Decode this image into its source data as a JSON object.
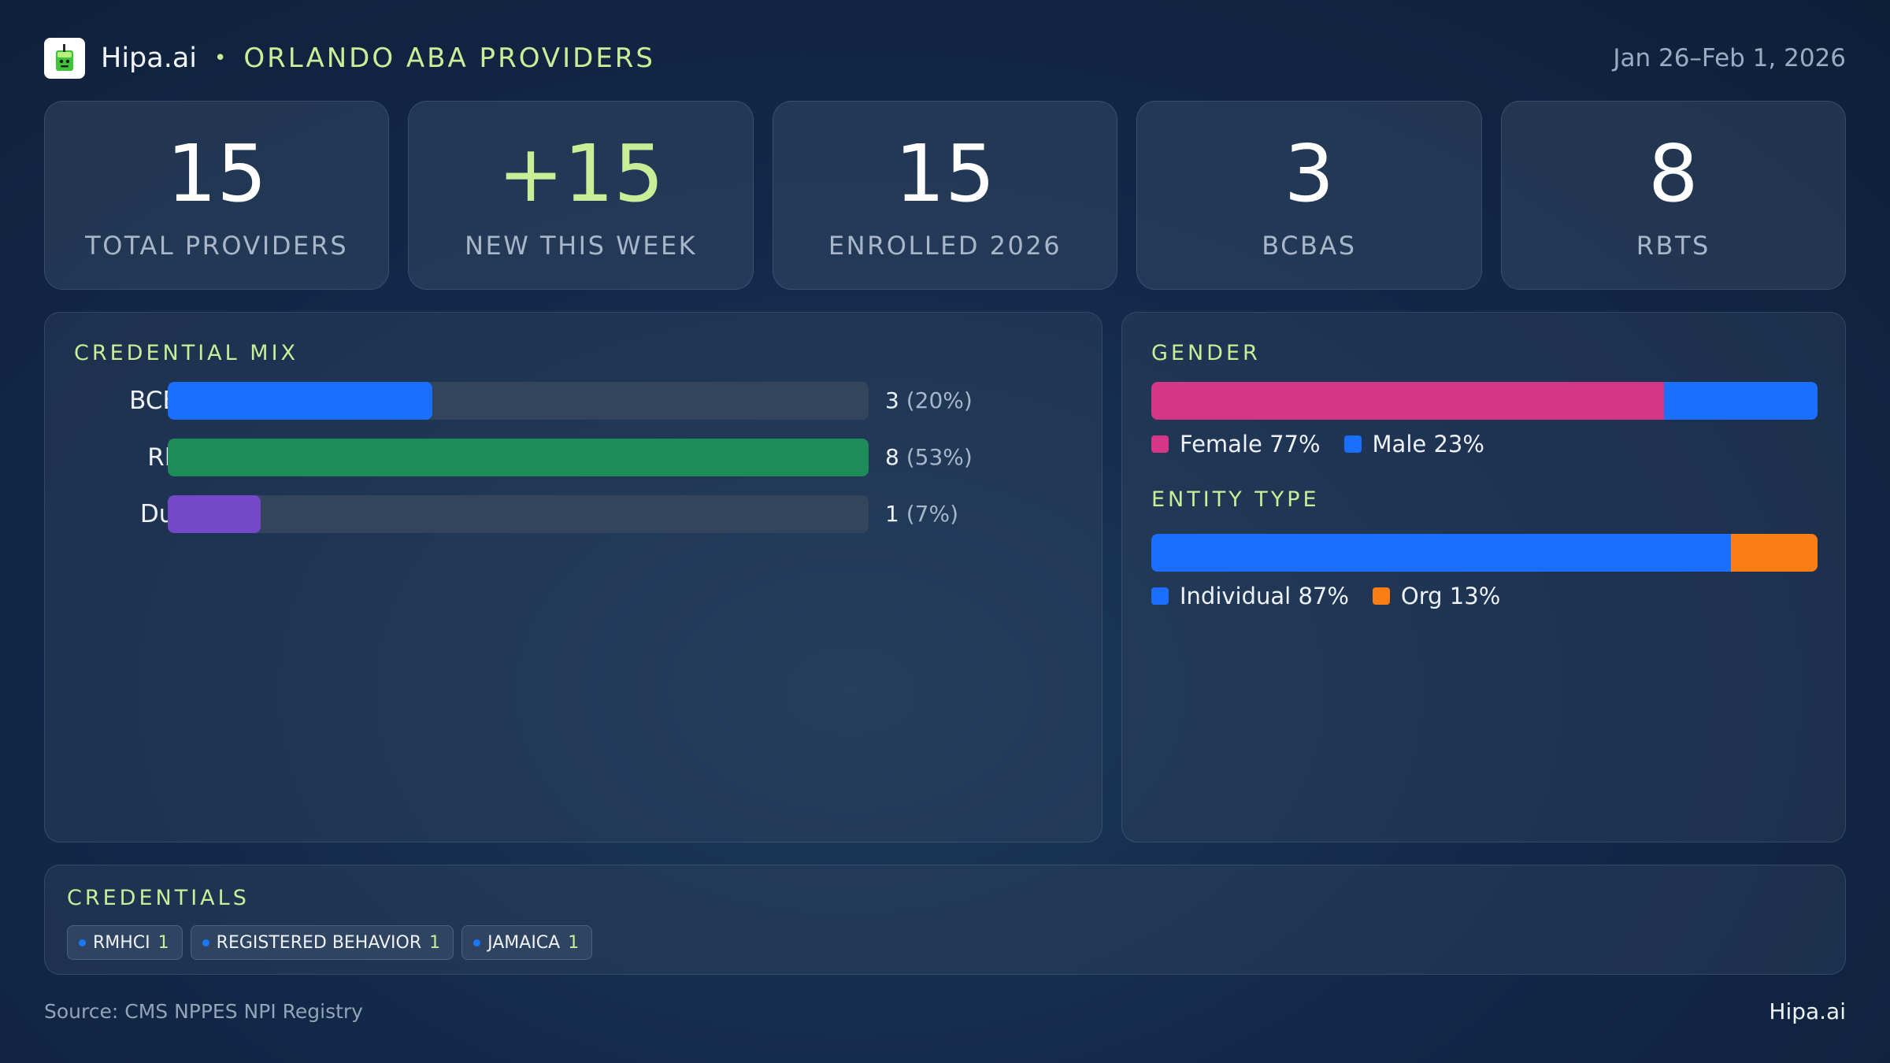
{
  "header": {
    "brand": "Hipa.ai",
    "separator": "•",
    "title": "ORLANDO ABA PROVIDERS",
    "date_range": "Jan 26–Feb 1, 2026"
  },
  "kpis": [
    {
      "value": "15",
      "label": "TOTAL PROVIDERS"
    },
    {
      "value": "+15",
      "label": "NEW THIS WEEK"
    },
    {
      "value": "15",
      "label": "ENROLLED 2026"
    },
    {
      "value": "3",
      "label": "BCBAS"
    },
    {
      "value": "8",
      "label": "RBTS"
    }
  ],
  "credential_mix": {
    "title": "CREDENTIAL MIX",
    "rows": [
      {
        "label": "BCBA",
        "count": "3",
        "pct": "(20%)",
        "fraction": 0.2,
        "color": "#1a6ffe"
      },
      {
        "label": "RBT",
        "count": "8",
        "pct": "(53%)",
        "fraction": 0.53,
        "color": "#1e8c58"
      },
      {
        "label": "Dual",
        "count": "1",
        "pct": "(7%)",
        "fraction": 0.07,
        "color": "#7448c8"
      }
    ]
  },
  "gender": {
    "title": "GENDER",
    "segments": [
      {
        "label": "Female 77%",
        "fraction": 0.77,
        "color": "#d63688"
      },
      {
        "label": "Male 23%",
        "fraction": 0.23,
        "color": "#1a6ffe"
      }
    ]
  },
  "entity_type": {
    "title": "ENTITY TYPE",
    "segments": [
      {
        "label": "Individual 87%",
        "fraction": 0.87,
        "color": "#1a6ffe"
      },
      {
        "label": "Org 13%",
        "fraction": 0.13,
        "color": "#fb7d16"
      }
    ]
  },
  "credentials": {
    "title": "CREDENTIALS",
    "chips": [
      {
        "name": "RMHCI",
        "count": "1"
      },
      {
        "name": "REGISTERED BEHAVIOR",
        "count": "1"
      },
      {
        "name": "JAMAICA",
        "count": "1"
      }
    ]
  },
  "footer": {
    "source": "Source: CMS NPPES NPI Registry",
    "brand": "Hipa.ai"
  }
}
